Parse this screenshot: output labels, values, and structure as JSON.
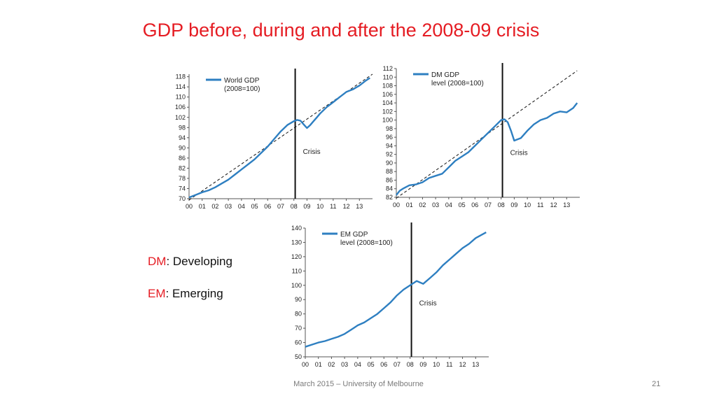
{
  "slide": {
    "title": "GDP before, during and after the 2008-09 crisis",
    "footer": "March 2015 – University of Melbourne",
    "page_number": "21",
    "definitions": [
      {
        "abbr": "DM",
        "rest": ": Developing"
      },
      {
        "abbr": "EM",
        "rest": ": Emerging"
      }
    ]
  },
  "chart_data": [
    {
      "type": "line",
      "title": "",
      "legend": "World GDP (2008=100)",
      "legend_lines": [
        "World GDP",
        "(2008=100)"
      ],
      "legend_position": "top-left",
      "color": "#2e7fc1",
      "x_tick_labels": [
        "00",
        "01",
        "02",
        "03",
        "04",
        "05",
        "06",
        "07",
        "08",
        "09",
        "10",
        "11",
        "12",
        "13"
      ],
      "xlim": [
        2000,
        2014
      ],
      "ylim": [
        70,
        119
      ],
      "y_ticks": [
        70,
        74,
        78,
        82,
        86,
        90,
        94,
        98,
        102,
        106,
        110,
        114,
        118
      ],
      "crisis_x": 2008.1,
      "annotation": "Crisis",
      "trend": {
        "x": [
          2000,
          2014
        ],
        "y": [
          69.5,
          119
        ]
      },
      "x": [
        2000,
        2000.5,
        2001,
        2001.5,
        2002,
        2002.5,
        2003,
        2003.5,
        2004,
        2004.5,
        2005,
        2005.5,
        2006,
        2006.5,
        2007,
        2007.5,
        2008,
        2008.25,
        2008.5,
        2008.75,
        2009,
        2009.25,
        2009.5,
        2009.75,
        2010,
        2010.5,
        2011,
        2011.5,
        2012,
        2012.5,
        2013,
        2013.5,
        2013.8
      ],
      "y": [
        70.5,
        71.5,
        72.5,
        73.3,
        74.5,
        76,
        77.5,
        79.5,
        81.5,
        83.5,
        85.5,
        88,
        90.5,
        93.5,
        96.5,
        99,
        100.5,
        101,
        100.7,
        99.2,
        97.8,
        99,
        100.5,
        102,
        103.5,
        106,
        108,
        110,
        112,
        113,
        114.5,
        116.5,
        117.5
      ]
    },
    {
      "type": "line",
      "title": "",
      "legend": "DM GDP level (2008=100)",
      "legend_lines": [
        "DM GDP",
        "level (2008=100)"
      ],
      "legend_position": "top-left",
      "color": "#2e7fc1",
      "x_tick_labels": [
        "00",
        "01",
        "02",
        "03",
        "04",
        "05",
        "06",
        "07",
        "08",
        "09",
        "10",
        "11",
        "12",
        "13"
      ],
      "xlim": [
        2000,
        2014
      ],
      "ylim": [
        82,
        112
      ],
      "y_ticks": [
        82,
        84,
        86,
        88,
        90,
        92,
        94,
        96,
        98,
        100,
        102,
        104,
        106,
        108,
        110,
        112
      ],
      "crisis_x": 2008.1,
      "annotation": "Crisis",
      "trend": {
        "x": [
          2000,
          2013.8
        ],
        "y": [
          81.8,
          111.5
        ]
      },
      "x": [
        2000,
        2000.25,
        2000.5,
        2001,
        2001.5,
        2002,
        2002.5,
        2003,
        2003.5,
        2004,
        2004.5,
        2005,
        2005.5,
        2006,
        2006.5,
        2007,
        2007.5,
        2008,
        2008.25,
        2008.5,
        2008.75,
        2009,
        2009.5,
        2010,
        2010.5,
        2011,
        2011.5,
        2012,
        2012.5,
        2013,
        2013.5,
        2013.8
      ],
      "y": [
        82.5,
        83.5,
        84,
        84.8,
        85,
        85.5,
        86.5,
        87,
        87.5,
        89,
        90.5,
        91.5,
        92.5,
        94,
        95.5,
        97,
        98.5,
        100,
        100.2,
        99.5,
        97.5,
        95.2,
        95.8,
        97.5,
        99,
        100,
        100.5,
        101.5,
        102,
        101.8,
        102.8,
        104
      ]
    },
    {
      "type": "line",
      "title": "",
      "legend": "EM GDP level (2008=100)",
      "legend_lines": [
        "EM GDP",
        "level (2008=100)"
      ],
      "legend_position": "top-left",
      "color": "#2e7fc1",
      "x_tick_labels": [
        "00",
        "01",
        "02",
        "03",
        "04",
        "05",
        "06",
        "07",
        "08",
        "09",
        "10",
        "11",
        "12",
        "13"
      ],
      "xlim": [
        2000,
        2014
      ],
      "ylim": [
        50,
        140
      ],
      "y_ticks": [
        50,
        60,
        70,
        80,
        90,
        100,
        110,
        120,
        130,
        140
      ],
      "crisis_x": 2008.1,
      "annotation": "Crisis",
      "x": [
        2000,
        2000.5,
        2001,
        2001.5,
        2002,
        2002.5,
        2003,
        2003.5,
        2004,
        2004.5,
        2005,
        2005.5,
        2006,
        2006.5,
        2007,
        2007.5,
        2008,
        2008.5,
        2009,
        2009.5,
        2010,
        2010.5,
        2011,
        2011.5,
        2012,
        2012.5,
        2013,
        2013.5,
        2013.8
      ],
      "y": [
        57,
        58.5,
        60,
        61,
        62.5,
        64,
        66,
        69,
        72,
        74,
        77,
        80,
        84,
        88,
        93,
        97,
        100,
        103,
        101,
        105,
        109,
        114,
        118,
        122,
        126,
        129,
        133,
        135.5,
        137
      ]
    }
  ]
}
